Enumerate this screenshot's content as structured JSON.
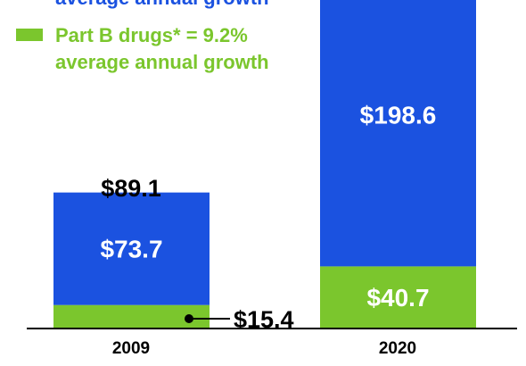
{
  "chart_data": {
    "type": "bar",
    "stacked": true,
    "categories": [
      "2009",
      "2020"
    ],
    "series": [
      {
        "key": "partB",
        "legend_line1": "Part B drugs* = 9.2%",
        "legend_line2": "average annual growth",
        "color": "#7bc62d",
        "values": [
          15.4,
          40.7
        ],
        "labels": [
          "$15.4",
          "$40.7"
        ]
      },
      {
        "key": "partD",
        "legend_line1": "",
        "legend_line2": "average annual growth",
        "color": "#1b52e0",
        "values": [
          73.7,
          198.6
        ],
        "labels": [
          "$73.7",
          "$198.6"
        ]
      }
    ],
    "totals": [
      "$89.1",
      ""
    ],
    "axis_color": "#000000"
  }
}
